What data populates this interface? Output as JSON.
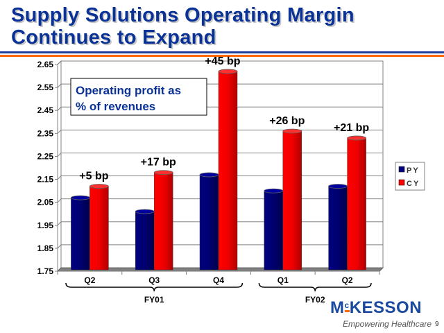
{
  "slide": {
    "title_line1": "Supply Solutions Operating Margin",
    "title_line2": "Continues to Expand",
    "logo_text_main": "M",
    "logo_text_sup": "c",
    "logo_text_rest": "KESSON",
    "tagline": "Empowering Healthcare",
    "page_number": "9"
  },
  "chart_data": {
    "type": "bar",
    "title": "Operating profit as % of revenues",
    "title_line1": "Operating profit as",
    "title_line2": "% of revenues",
    "categories": [
      "Q2",
      "Q3",
      "Q4",
      "Q1",
      "Q2"
    ],
    "groups": [
      {
        "label": "FY01",
        "categories": [
          0,
          1,
          2
        ]
      },
      {
        "label": "FY02",
        "categories": [
          3,
          4
        ]
      }
    ],
    "series": [
      {
        "name": "PY",
        "color": "#000080",
        "values": [
          2.07,
          2.01,
          2.17,
          2.1,
          2.12
        ]
      },
      {
        "name": "CY",
        "color": "#ff0000",
        "values": [
          2.12,
          2.18,
          2.62,
          2.36,
          2.33
        ]
      }
    ],
    "annotations": [
      "+5 bp",
      "+17 bp",
      "+45 bp",
      "+26 bp",
      "+21 bp"
    ],
    "yticks": [
      "1.75",
      "1.85",
      "1.95",
      "2.05",
      "2.15",
      "2.25",
      "2.35",
      "2.45",
      "2.55",
      "2.65"
    ],
    "ylim": [
      1.75,
      2.65
    ],
    "xlabel": "",
    "ylabel": "",
    "grid": true,
    "legend": "right"
  }
}
